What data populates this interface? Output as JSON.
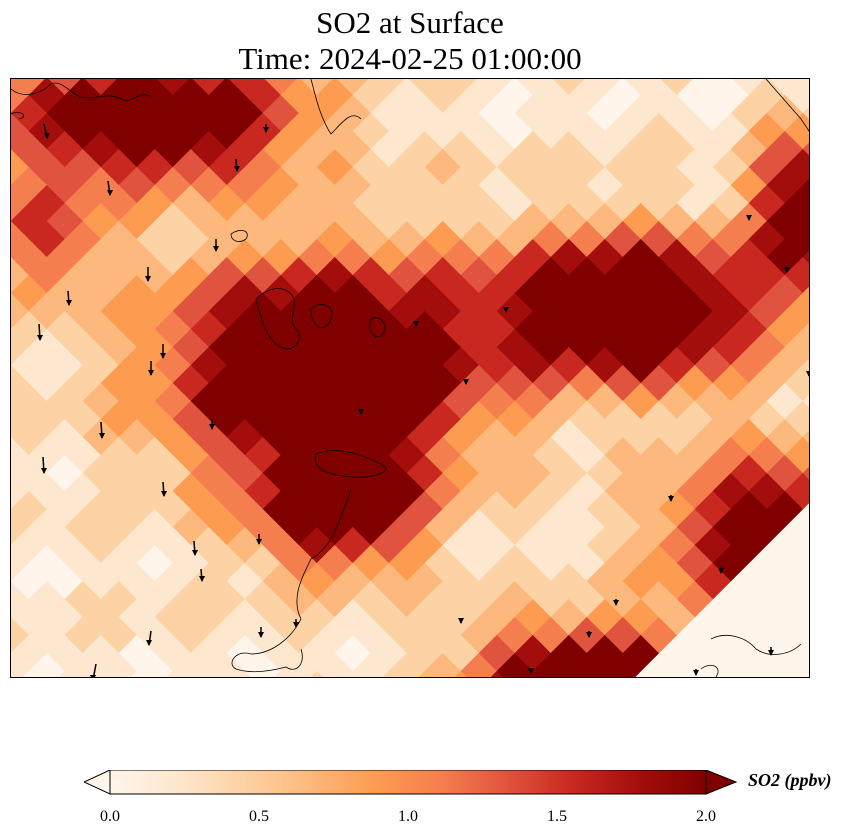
{
  "title": {
    "line1": "SO2 at Surface",
    "line2": "Time: 2024-02-25 01:00:00"
  },
  "map": {
    "variable": "SO2",
    "units": "ppbv",
    "colormap": "OrRd",
    "vmin": 0.0,
    "vmax": 2.0,
    "extend": "both",
    "palette": [
      "#fff5eb",
      "#fee7cf",
      "#fdd2a5",
      "#fdb97d",
      "#fd9c51",
      "#f57e4e",
      "#e0533e",
      "#c8281f",
      "#a30e0c",
      "#800000"
    ]
  },
  "colorbar": {
    "label": "SO2 (ppbv)",
    "ticks": [
      "0.0",
      "0.5",
      "1.0",
      "1.5",
      "2.0"
    ],
    "tick_values": [
      0.0,
      0.5,
      1.0,
      1.5,
      2.0
    ]
  }
}
